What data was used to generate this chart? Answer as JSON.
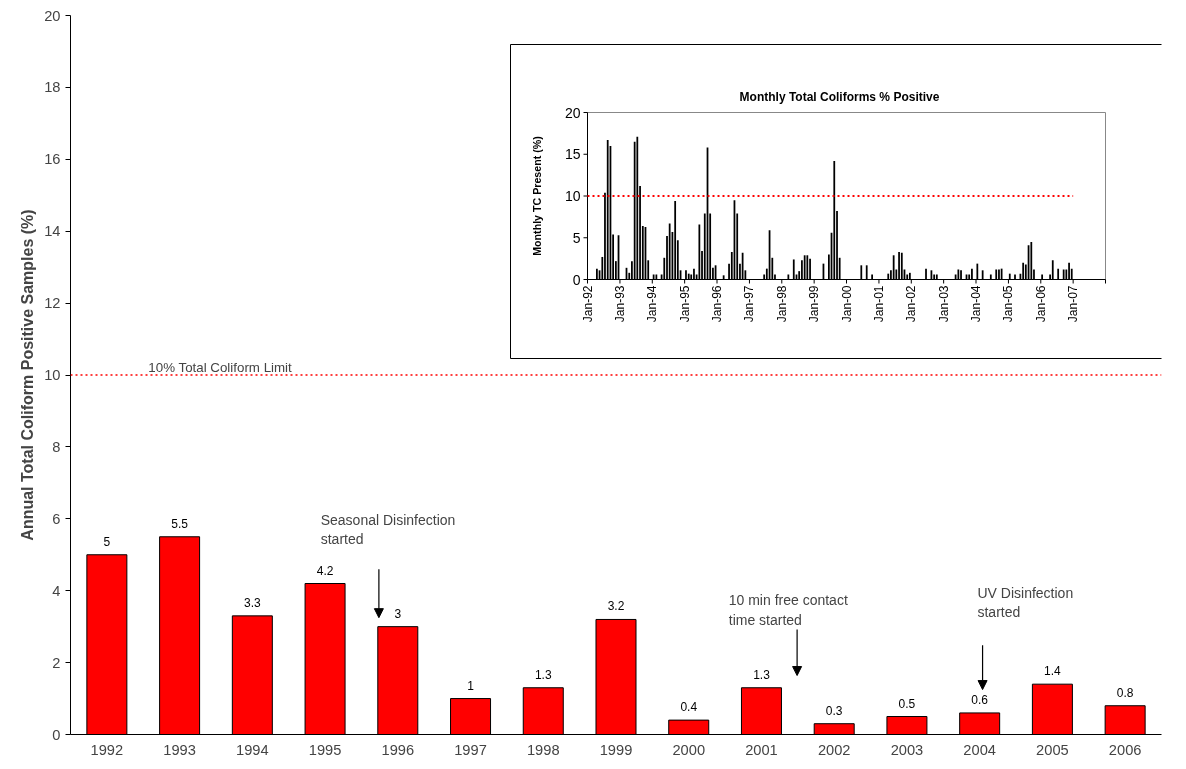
{
  "chart_data": [
    {
      "type": "bar",
      "categories": [
        "1992",
        "1993",
        "1994",
        "1995",
        "1996",
        "1997",
        "1998",
        "1999",
        "2000",
        "2001",
        "2002",
        "2003",
        "2004",
        "2005",
        "2006"
      ],
      "values": [
        5,
        5.5,
        3.3,
        4.2,
        3,
        1,
        1.3,
        3.2,
        0.4,
        1.3,
        0.3,
        0.5,
        0.6,
        1.4,
        0.8
      ],
      "color": "#ff0000",
      "ylabel": "Annual Total Coliform Positive Samples (%)",
      "ylim": [
        0,
        20
      ],
      "yticks": [
        0,
        2,
        4,
        6,
        8,
        10,
        12,
        14,
        16,
        18,
        20
      ],
      "data_labels": true,
      "ref_lines": [
        {
          "axis": "y",
          "value": 10,
          "label": "10% Total Coliform Limit",
          "color": "#ff0000",
          "line_style": "dotted"
        }
      ],
      "annotations": [
        "Seasonal Disinfection\nstarted",
        "10 min free contact\ntime started",
        "UV Disinfection\nstarted"
      ]
    },
    {
      "type": "bar",
      "title": "Monthly Total Coliforms % Positive",
      "ylabel": "Monthly TC Present (%)",
      "color": "#000000",
      "x": [
        "1992-04",
        "1992-05",
        "1992-06",
        "1992-07",
        "1992-08",
        "1992-09",
        "1992-10",
        "1992-11",
        "1992-12",
        "1993-03",
        "1993-04",
        "1993-05",
        "1993-06",
        "1993-07",
        "1993-08",
        "1993-09",
        "1993-10",
        "1993-11",
        "1994-01",
        "1994-02",
        "1994-04",
        "1994-05",
        "1994-06",
        "1994-07",
        "1994-08",
        "1994-09",
        "1994-10",
        "1994-11",
        "1995-01",
        "1995-02",
        "1995-03",
        "1995-04",
        "1995-05",
        "1995-06",
        "1995-07",
        "1995-08",
        "1995-09",
        "1995-10",
        "1995-11",
        "1995-12",
        "1996-03",
        "1996-05",
        "1996-06",
        "1996-07",
        "1996-08",
        "1996-09",
        "1996-10",
        "1996-11",
        "1997-06",
        "1997-07",
        "1997-08",
        "1997-09",
        "1997-10",
        "1998-03",
        "1998-05",
        "1998-06",
        "1998-07",
        "1998-08",
        "1998-09",
        "1998-10",
        "1998-11",
        "1999-04",
        "1999-06",
        "1999-07",
        "1999-08",
        "1999-09",
        "1999-10",
        "2000-06",
        "2000-08",
        "2000-10",
        "2001-04",
        "2001-05",
        "2001-06",
        "2001-07",
        "2001-08",
        "2001-09",
        "2001-10",
        "2001-11",
        "2001-12",
        "2002-06",
        "2002-08",
        "2002-09",
        "2002-10",
        "2003-05",
        "2003-06",
        "2003-07",
        "2003-09",
        "2003-10",
        "2003-11",
        "2004-01",
        "2004-03",
        "2004-06",
        "2004-08",
        "2004-09",
        "2004-10",
        "2005-01",
        "2005-03",
        "2005-05",
        "2005-06",
        "2005-07",
        "2005-08",
        "2005-09",
        "2005-10",
        "2006-01",
        "2006-04",
        "2006-05",
        "2006-07",
        "2006-09",
        "2006-10",
        "2006-11",
        "2006-12"
      ],
      "values": [
        1.3,
        1.1,
        2.7,
        10.4,
        16.7,
        16.0,
        5.4,
        2.2,
        5.3,
        1.4,
        0.8,
        2.2,
        16.5,
        17.1,
        11.2,
        6.4,
        6.3,
        2.3,
        0.6,
        0.6,
        0.6,
        2.6,
        5.2,
        6.7,
        5.7,
        9.4,
        4.7,
        1.1,
        1.1,
        0.7,
        0.6,
        1.3,
        0.6,
        6.6,
        3.4,
        7.9,
        15.8,
        7.9,
        1.4,
        1.7,
        0.5,
        1.9,
        3.3,
        9.5,
        7.9,
        1.9,
        3.2,
        1.1,
        0.6,
        1.3,
        5.9,
        2.6,
        0.6,
        0.6,
        2.4,
        0.6,
        1.0,
        2.3,
        2.9,
        2.9,
        2.5,
        1.9,
        3.0,
        5.6,
        14.2,
        8.2,
        2.6,
        1.7,
        1.7,
        0.6,
        0.7,
        1.1,
        2.9,
        1.2,
        3.3,
        3.2,
        1.2,
        0.6,
        0.8,
        1.3,
        1.1,
        0.6,
        0.6,
        0.6,
        1.2,
        1.1,
        0.6,
        0.6,
        1.3,
        1.9,
        1.1,
        0.6,
        1.2,
        1.2,
        1.3,
        0.7,
        0.6,
        0.7,
        2.0,
        1.8,
        4.1,
        4.5,
        1.2,
        0.6,
        0.6,
        2.3,
        1.3,
        1.2,
        1.2,
        2.0,
        1.3
      ],
      "xlim": [
        "1992-01",
        "2008-01"
      ],
      "xticks": [
        {
          "value": "1992-01",
          "label": "Jan-92"
        },
        {
          "value": "1993-01",
          "label": "Jan-93"
        },
        {
          "value": "1994-01",
          "label": "Jan-94"
        },
        {
          "value": "1995-01",
          "label": "Jan-95"
        },
        {
          "value": "1996-01",
          "label": "Jan-96"
        },
        {
          "value": "1997-01",
          "label": "Jan-97"
        },
        {
          "value": "1998-01",
          "label": "Jan-98"
        },
        {
          "value": "1999-01",
          "label": "Jan-99"
        },
        {
          "value": "2000-01",
          "label": "Jan-00"
        },
        {
          "value": "2001-01",
          "label": "Jan-01"
        },
        {
          "value": "2002-01",
          "label": "Jan-02"
        },
        {
          "value": "2003-01",
          "label": "Jan-03"
        },
        {
          "value": "2004-01",
          "label": "Jan-04"
        },
        {
          "value": "2005-01",
          "label": "Jan-05"
        },
        {
          "value": "2006-01",
          "label": "Jan-06"
        },
        {
          "value": "2007-01",
          "label": "Jan-07"
        },
        {
          "value": "2008-01",
          "label": null
        }
      ],
      "ylim": [
        0,
        20
      ],
      "yticks": [
        0,
        5,
        10,
        15,
        20
      ],
      "ref_lines": [
        {
          "axis": "y",
          "value": 10,
          "color": "#ff0000",
          "line_style": "dotted"
        }
      ]
    }
  ]
}
